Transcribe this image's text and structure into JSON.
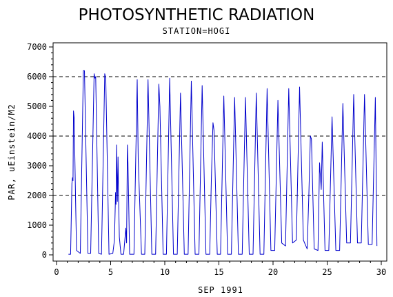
{
  "chart_data": {
    "type": "line",
    "title": "PHOTOSYNTHETIC RADIATION",
    "subtitle": "STATION=HOGI",
    "xlabel": "SEP 1991",
    "ylabel": "PAR, uEinstein/M2",
    "xlim": [
      0,
      30
    ],
    "ylim": [
      0,
      7000
    ],
    "x_ticks": [
      0,
      5,
      10,
      15,
      20,
      25,
      30
    ],
    "y_ticks": [
      0,
      1000,
      2000,
      3000,
      4000,
      5000,
      6000,
      7000
    ],
    "reference_lines": [
      2000,
      4000,
      6000
    ],
    "grid": false,
    "line_color": "#0000cc",
    "series": [
      {
        "values": [
          [
            1.1,
            20
          ],
          [
            1.3,
            20
          ],
          [
            1.42,
            2400
          ],
          [
            1.47,
            2600
          ],
          [
            1.52,
            2500
          ],
          [
            1.57,
            4850
          ],
          [
            1.63,
            4600
          ],
          [
            1.75,
            2000
          ],
          [
            1.85,
            150
          ],
          [
            2.2,
            50
          ],
          [
            2.48,
            6200
          ],
          [
            2.58,
            6200
          ],
          [
            2.9,
            50
          ],
          [
            3.15,
            50
          ],
          [
            3.47,
            6100
          ],
          [
            3.55,
            5950
          ],
          [
            3.62,
            6000
          ],
          [
            3.9,
            50
          ],
          [
            4.15,
            20
          ],
          [
            4.45,
            6100
          ],
          [
            4.55,
            5950
          ],
          [
            4.85,
            20
          ],
          [
            5.2,
            50
          ],
          [
            5.35,
            500
          ],
          [
            5.45,
            2100
          ],
          [
            5.5,
            1700
          ],
          [
            5.55,
            3700
          ],
          [
            5.62,
            1800
          ],
          [
            5.68,
            3300
          ],
          [
            5.72,
            2100
          ],
          [
            5.8,
            600
          ],
          [
            5.95,
            20
          ],
          [
            6.2,
            20
          ],
          [
            6.4,
            900
          ],
          [
            6.47,
            400
          ],
          [
            6.55,
            3700
          ],
          [
            6.6,
            3100
          ],
          [
            6.75,
            20
          ],
          [
            7.15,
            20
          ],
          [
            7.45,
            5900
          ],
          [
            7.55,
            3200
          ],
          [
            7.85,
            20
          ],
          [
            8.15,
            20
          ],
          [
            8.45,
            5900
          ],
          [
            8.8,
            20
          ],
          [
            9.15,
            20
          ],
          [
            9.45,
            5750
          ],
          [
            9.55,
            5000
          ],
          [
            9.85,
            20
          ],
          [
            10.15,
            20
          ],
          [
            10.45,
            5950
          ],
          [
            10.8,
            20
          ],
          [
            11.15,
            20
          ],
          [
            11.45,
            5450
          ],
          [
            11.8,
            20
          ],
          [
            12.15,
            20
          ],
          [
            12.45,
            5850
          ],
          [
            12.8,
            20
          ],
          [
            13.15,
            20
          ],
          [
            13.45,
            5700
          ],
          [
            13.8,
            20
          ],
          [
            14.15,
            20
          ],
          [
            14.3,
            2500
          ],
          [
            14.45,
            4450
          ],
          [
            14.55,
            4200
          ],
          [
            14.85,
            20
          ],
          [
            15.15,
            20
          ],
          [
            15.45,
            5350
          ],
          [
            15.8,
            20
          ],
          [
            16.15,
            20
          ],
          [
            16.45,
            5300
          ],
          [
            16.8,
            20
          ],
          [
            17.15,
            20
          ],
          [
            17.45,
            5300
          ],
          [
            17.8,
            20
          ],
          [
            18.15,
            20
          ],
          [
            18.45,
            5450
          ],
          [
            18.8,
            20
          ],
          [
            19.15,
            20
          ],
          [
            19.45,
            5600
          ],
          [
            19.8,
            150
          ],
          [
            20.15,
            150
          ],
          [
            20.45,
            5200
          ],
          [
            20.8,
            400
          ],
          [
            21.15,
            300
          ],
          [
            21.45,
            5600
          ],
          [
            21.8,
            400
          ],
          [
            22.15,
            500
          ],
          [
            22.45,
            5650
          ],
          [
            22.8,
            500
          ],
          [
            23.15,
            200
          ],
          [
            23.3,
            1900
          ],
          [
            23.45,
            4000
          ],
          [
            23.55,
            3900
          ],
          [
            23.8,
            200
          ],
          [
            24.15,
            150
          ],
          [
            24.3,
            3100
          ],
          [
            24.45,
            2200
          ],
          [
            24.55,
            3800
          ],
          [
            24.8,
            150
          ],
          [
            25.15,
            150
          ],
          [
            25.45,
            4650
          ],
          [
            25.8,
            150
          ],
          [
            26.15,
            150
          ],
          [
            26.45,
            5100
          ],
          [
            26.8,
            400
          ],
          [
            27.15,
            400
          ],
          [
            27.45,
            5400
          ],
          [
            27.8,
            400
          ],
          [
            28.15,
            400
          ],
          [
            28.45,
            5400
          ],
          [
            28.8,
            350
          ],
          [
            29.15,
            350
          ],
          [
            29.45,
            5300
          ],
          [
            29.6,
            300
          ]
        ]
      }
    ]
  }
}
